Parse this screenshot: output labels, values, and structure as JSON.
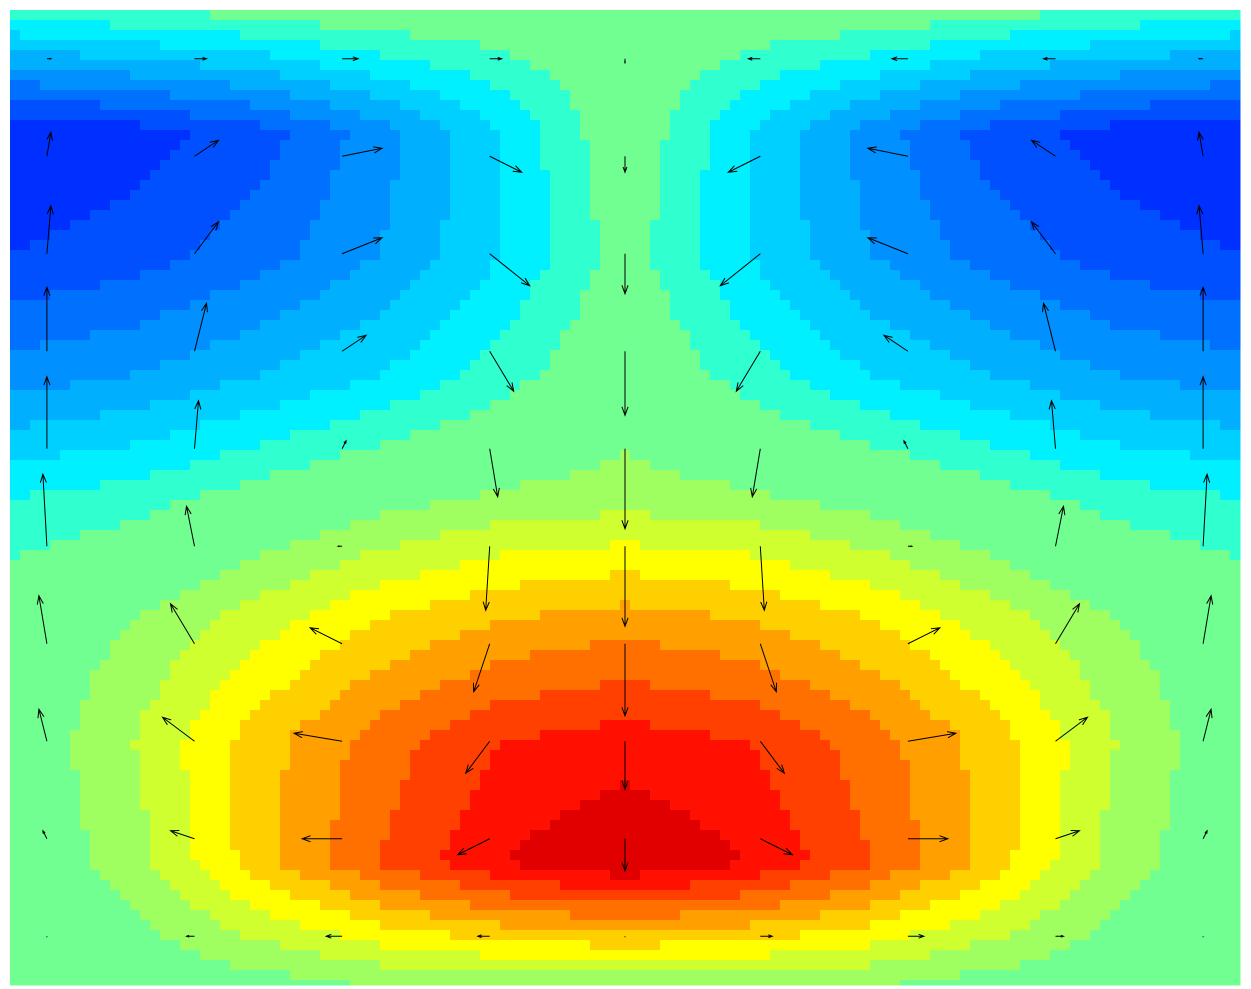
{
  "chart_data": {
    "type": "contour-quiver",
    "levels": [
      -0.9,
      -0.8,
      -0.7,
      -0.6,
      -0.5,
      -0.4,
      -0.3,
      -0.2,
      -0.1,
      0.1,
      0.2,
      0.3,
      0.4,
      0.5,
      0.6,
      0.7,
      0.8,
      0.9
    ],
    "colors": [
      "#0010f0",
      "#0030ff",
      "#0050ff",
      "#0070ff",
      "#0090ff",
      "#00b0ff",
      "#00d0ff",
      "#00f0ff",
      "#30ffd0",
      "#70ff90",
      "#a0ff60",
      "#d0ff30",
      "#ffff00",
      "#ffd000",
      "#ffa000",
      "#ff7000",
      "#ff4000",
      "#ff1000",
      "#e00000"
    ],
    "z": [
      [
        -0.15,
        -0.1,
        -0.05,
        0,
        0,
        0,
        0,
        0,
        -0.05,
        -0.1,
        -0.15
      ],
      [
        -0.9,
        -0.85,
        -0.75,
        -0.55,
        -0.3,
        0,
        -0.3,
        -0.55,
        -0.75,
        -0.85,
        -0.9
      ],
      [
        -0.8,
        -0.75,
        -0.65,
        -0.5,
        -0.3,
        -0.05,
        -0.3,
        -0.5,
        -0.65,
        -0.75,
        -0.8
      ],
      [
        -0.55,
        -0.5,
        -0.4,
        -0.3,
        -0.15,
        0.02,
        -0.15,
        -0.3,
        -0.4,
        -0.5,
        -0.55
      ],
      [
        -0.2,
        -0.15,
        -0.05,
        0.05,
        0.12,
        0.15,
        0.12,
        0.05,
        -0.05,
        -0.15,
        -0.2
      ],
      [
        0,
        0.1,
        0.25,
        0.4,
        0.5,
        0.55,
        0.5,
        0.4,
        0.25,
        0.1,
        0
      ],
      [
        0,
        0.2,
        0.45,
        0.65,
        0.8,
        0.85,
        0.8,
        0.65,
        0.45,
        0.2,
        0
      ],
      [
        0,
        0.15,
        0.45,
        0.7,
        0.9,
        1.0,
        0.9,
        0.7,
        0.45,
        0.15,
        0
      ],
      [
        0,
        0,
        0.05,
        0.1,
        0.12,
        0.12,
        0.12,
        0.1,
        0.05,
        0,
        0
      ]
    ],
    "arrow_x": [
      0.03,
      0.15,
      0.27,
      0.39,
      0.5,
      0.61,
      0.73,
      0.85,
      0.97
    ],
    "arrow_y": [
      0.05,
      0.15,
      0.25,
      0.35,
      0.45,
      0.55,
      0.65,
      0.75,
      0.85,
      0.95
    ],
    "arrow_color": "#000000",
    "u": [
      [
        0.05,
        0.15,
        0.2,
        0.15,
        0,
        -0.15,
        -0.2,
        -0.15,
        -0.05
      ],
      [
        0.05,
        0.3,
        0.5,
        0.4,
        0,
        -0.4,
        -0.5,
        -0.3,
        -0.05
      ],
      [
        0.05,
        0.3,
        0.5,
        0.5,
        0,
        -0.5,
        -0.5,
        -0.3,
        -0.05
      ],
      [
        0,
        0.15,
        0.3,
        0.3,
        0,
        -0.3,
        -0.3,
        -0.15,
        0
      ],
      [
        0,
        0.05,
        0.05,
        0.1,
        0,
        -0.1,
        -0.05,
        -0.05,
        0
      ],
      [
        -0.05,
        -0.1,
        -0.05,
        -0.05,
        0,
        0.05,
        0.05,
        0.1,
        0.05
      ],
      [
        -0.1,
        -0.3,
        -0.4,
        -0.2,
        0,
        0.2,
        0.4,
        0.3,
        0.1
      ],
      [
        -0.1,
        -0.4,
        -0.6,
        -0.3,
        0,
        0.3,
        0.6,
        0.4,
        0.1
      ],
      [
        -0.05,
        -0.3,
        -0.5,
        -0.4,
        0,
        0.4,
        0.5,
        0.3,
        0.05
      ],
      [
        0,
        -0.1,
        -0.2,
        -0.15,
        0,
        0.15,
        0.2,
        0.1,
        0
      ]
    ],
    "v": [
      [
        0,
        0,
        0,
        0,
        -0.05,
        0,
        0,
        0,
        0
      ],
      [
        0.3,
        0.2,
        0.1,
        -0.2,
        -0.2,
        -0.2,
        0.1,
        0.2,
        0.3
      ],
      [
        0.6,
        0.4,
        0.2,
        -0.4,
        -0.5,
        -0.4,
        0.2,
        0.4,
        0.6
      ],
      [
        0.8,
        0.6,
        0.2,
        -0.5,
        -0.8,
        -0.5,
        0.2,
        0.6,
        0.8
      ],
      [
        0.9,
        0.6,
        0.1,
        -0.6,
        -1.0,
        -0.6,
        0.1,
        0.6,
        0.9
      ],
      [
        0.9,
        0.5,
        0,
        -0.8,
        -1.0,
        -0.8,
        0,
        0.5,
        0.9
      ],
      [
        0.6,
        0.5,
        0.2,
        -0.6,
        -0.9,
        -0.6,
        0.2,
        0.5,
        0.6
      ],
      [
        0.4,
        0.3,
        0.1,
        -0.4,
        -0.6,
        -0.4,
        0.1,
        0.3,
        0.4
      ],
      [
        0.1,
        0.1,
        0,
        -0.2,
        -0.4,
        -0.2,
        0,
        0.1,
        0.1
      ],
      [
        0,
        0,
        0,
        0,
        0,
        0,
        0,
        0,
        0
      ]
    ]
  }
}
